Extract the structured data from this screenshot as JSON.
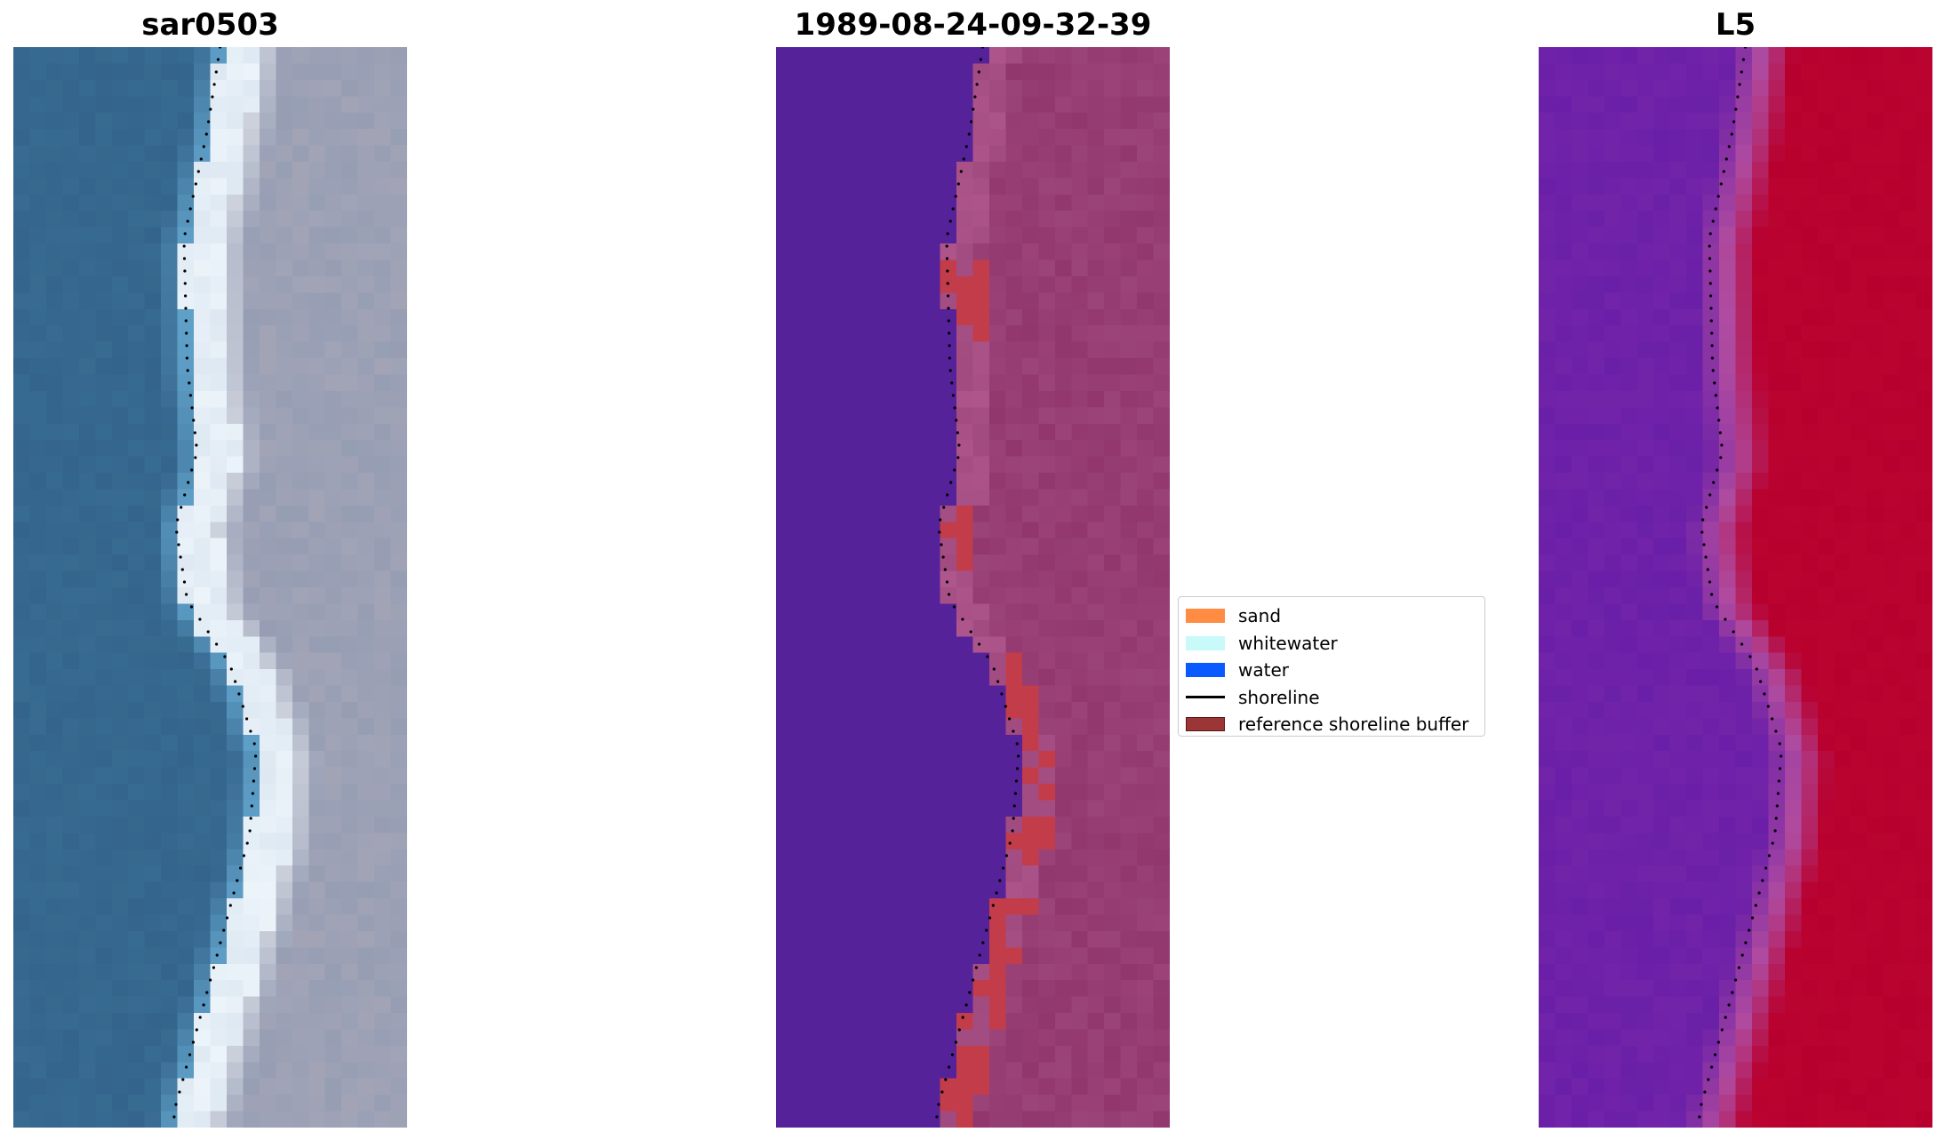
{
  "panels": {
    "left": {
      "title": "sar0503"
    },
    "middle": {
      "title": "1989-08-24-09-32-39"
    },
    "right": {
      "title": "L5"
    }
  },
  "legend": {
    "items": [
      {
        "label": "sand",
        "color": "#ff8c42",
        "kind": "patch"
      },
      {
        "label": "whitewater",
        "color": "#c8fafa",
        "kind": "patch"
      },
      {
        "label": "water",
        "color": "#0a5bff",
        "kind": "patch"
      },
      {
        "label": "shoreline",
        "color": "#000000",
        "kind": "line"
      },
      {
        "label": "reference shoreline buffer",
        "color": "#9c3535",
        "kind": "patch"
      }
    ]
  },
  "colors": {
    "ocean_rgb": "#356a93",
    "sand_rgb": "#e8eef5",
    "land_rgb": "#9ba1b8",
    "water_class": "#55229a",
    "land_class": "#a04a7f",
    "buffer_class": "#c23c4a",
    "index_low": "#6a1fa8",
    "index_high": "#b8002e"
  }
}
